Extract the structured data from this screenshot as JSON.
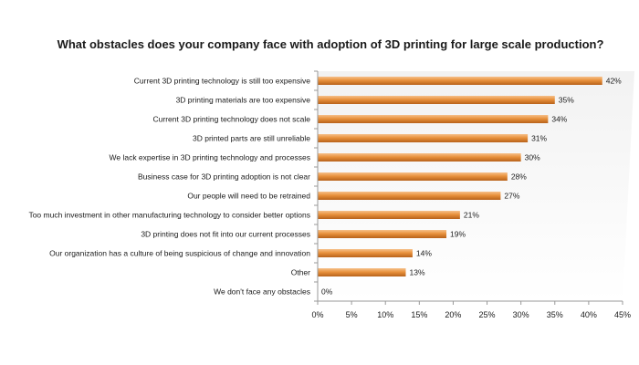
{
  "chart_data": {
    "type": "bar",
    "orientation": "horizontal",
    "title": "What obstacles does your company face with adoption of 3D printing for large scale production?",
    "xlabel": "",
    "ylabel": "",
    "categories": [
      "Current 3D printing technology is still too expensive",
      "3D printing materials are too expensive",
      "Current 3D printing technology does not scale",
      "3D printed parts are still unreliable",
      "We lack expertise in 3D printing technology and processes",
      "Business case for 3D printing adoption is not clear",
      "Our people will need to be retrained",
      "Too much investment in other manufacturing technology to consider better options",
      "3D printing does not fit into our current processes",
      "Our organization has a culture of being suspicious of change and innovation",
      "Other",
      "We don't face any obstacles"
    ],
    "values": [
      42,
      35,
      34,
      31,
      30,
      28,
      27,
      21,
      19,
      14,
      13,
      0
    ],
    "value_labels": [
      "42%",
      "35%",
      "34%",
      "31%",
      "30%",
      "28%",
      "27%",
      "21%",
      "19%",
      "14%",
      "13%",
      "0%"
    ],
    "xlim": [
      0,
      45
    ],
    "xticks": [
      0,
      5,
      10,
      15,
      20,
      25,
      30,
      35,
      40,
      45
    ],
    "xtick_labels": [
      "0%",
      "5%",
      "10%",
      "15%",
      "20%",
      "25%",
      "30%",
      "35%",
      "40%",
      "45%"
    ],
    "grid": false,
    "legend": "none",
    "colors": {
      "bar": "#e8913c",
      "bar_dark": "#b8621a",
      "bar_light": "#f6c089",
      "plot_bg_top": "#f2f2f2",
      "plot_bg_bottom": "#ffffff",
      "axis": "#999999"
    }
  }
}
